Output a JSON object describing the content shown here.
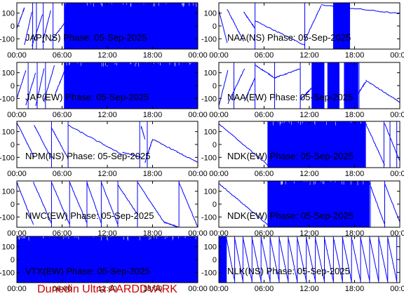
{
  "footer": {
    "text": "Dunedin Ultra AARDDVARK",
    "color": "#cc0000"
  },
  "colors": {
    "trace": "#0000ff",
    "frame": "#000000"
  },
  "chart_data": [
    {
      "type": "line",
      "title": "JAP(NS) Phase: 05-Sep-2025",
      "column": 0,
      "row": 0,
      "x_ticks": [
        "00:00",
        "06:00",
        "12:00",
        "18:00",
        "00:00"
      ],
      "y_ticks": [
        100,
        0,
        -100
      ],
      "ylim": [
        -180,
        180
      ],
      "xlim_hours": [
        0,
        24
      ],
      "segments": [
        {
          "x": [
            0,
            1.0
          ],
          "y": [
            -20,
            140
          ]
        },
        {
          "x": [
            1.0,
            2.0
          ],
          "y": [
            -150,
            110
          ]
        },
        {
          "x": [
            2.0,
            3.4
          ],
          "y": [
            -160,
            90
          ]
        },
        {
          "x": [
            3.4,
            4.5
          ],
          "y": [
            -130,
            120
          ]
        },
        {
          "x": [
            4.5,
            6.3
          ],
          "y": [
            -120,
            20
          ]
        }
      ],
      "noise_spans": [
        {
          "x": [
            6.3,
            24
          ],
          "ymin": -180,
          "ymax": 180
        }
      ],
      "vertical_lines": [
        2.1,
        2.6,
        3.5,
        4.8,
        6.3,
        16.1,
        16.9,
        18.0,
        23.7
      ]
    },
    {
      "type": "line",
      "title": "NAA(NS) Phase: 05-Sep-2025",
      "column": 1,
      "row": 0,
      "x_ticks": [
        "00:00",
        "06:00",
        "12:00",
        "18:00",
        "00:00"
      ],
      "y_ticks": [
        100,
        0,
        -100
      ],
      "ylim": [
        -180,
        180
      ],
      "xlim_hours": [
        0,
        24
      ],
      "segments": [
        {
          "x": [
            0,
            1.1
          ],
          "y": [
            120,
            -130
          ]
        },
        {
          "x": [
            1.1,
            3.3
          ],
          "y": [
            130,
            -120
          ]
        },
        {
          "x": [
            3.3,
            4.8
          ],
          "y": [
            110,
            -20
          ]
        },
        {
          "x": [
            4.8,
            11.4
          ],
          "y": [
            40,
            -150
          ]
        },
        {
          "x": [
            11.4,
            13.6
          ],
          "y": [
            -110,
            160
          ]
        },
        {
          "x": [
            13.6,
            24
          ],
          "y": [
            165,
            95
          ]
        }
      ],
      "noise_spans": [
        {
          "x": [
            15.2,
            17.4
          ],
          "ymin": -180,
          "ymax": 180
        }
      ],
      "vertical_lines": [
        4.8,
        11.4,
        15.2,
        16.8
      ]
    },
    {
      "type": "line",
      "title": "JAP(EW) Phase: 05-Sep-2025",
      "column": 0,
      "row": 1,
      "x_ticks": [
        "00:00",
        "06:00",
        "12:00",
        "18:00",
        "00:00"
      ],
      "y_ticks": [
        100,
        0,
        -100
      ],
      "ylim": [
        -180,
        180
      ],
      "xlim_hours": [
        0,
        24
      ],
      "segments": [
        {
          "x": [
            0,
            1.2
          ],
          "y": [
            -100,
            120
          ]
        },
        {
          "x": [
            1.2,
            2.5
          ],
          "y": [
            -150,
            100
          ]
        },
        {
          "x": [
            2.5,
            3.6
          ],
          "y": [
            -160,
            130
          ]
        },
        {
          "x": [
            3.6,
            5.0
          ],
          "y": [
            -120,
            160
          ]
        },
        {
          "x": [
            5.0,
            6.3
          ],
          "y": [
            -80,
            110
          ]
        }
      ],
      "noise_spans": [
        {
          "x": [
            6.3,
            24
          ],
          "ymin": -180,
          "ymax": 180
        }
      ],
      "vertical_lines": [
        1.5,
        2.7,
        3.8,
        6.3
      ]
    },
    {
      "type": "line",
      "title": "NAA(EW) Phase: 05-Sep-2025",
      "column": 1,
      "row": 1,
      "x_ticks": [
        "00:00",
        "06:00",
        "12:00",
        "18:00",
        "00:00"
      ],
      "y_ticks": [
        100,
        0,
        -100
      ],
      "ylim": [
        -180,
        180
      ],
      "xlim_hours": [
        0,
        24
      ],
      "segments": [
        {
          "x": [
            0,
            1.2
          ],
          "y": [
            -160,
            120
          ]
        },
        {
          "x": [
            1.2,
            3.4
          ],
          "y": [
            -140,
            130
          ]
        },
        {
          "x": [
            3.4,
            4.8
          ],
          "y": [
            -120,
            60
          ]
        },
        {
          "x": [
            4.8,
            7.4
          ],
          "y": [
            160,
            60
          ]
        },
        {
          "x": [
            7.4,
            10.8
          ],
          "y": [
            60,
            130
          ]
        },
        {
          "x": [
            10.8,
            12.3
          ],
          "y": [
            -110,
            -20
          ]
        },
        {
          "x": [
            18.5,
            19.5
          ],
          "y": [
            -60,
            30
          ]
        },
        {
          "x": [
            19.5,
            24
          ],
          "y": [
            40,
            -130
          ]
        }
      ],
      "noise_spans": [
        {
          "x": [
            12.3,
            14.0
          ],
          "ymin": -180,
          "ymax": 180
        },
        {
          "x": [
            14.4,
            16.0
          ],
          "ymin": -180,
          "ymax": 180
        },
        {
          "x": [
            16.6,
            18.5
          ],
          "ymin": -180,
          "ymax": 180
        }
      ],
      "vertical_lines": [
        2.0,
        4.8,
        7.4,
        10.8,
        13.5,
        18.6
      ]
    },
    {
      "type": "line",
      "title": "NPM(NS) Phase: 05-Sep-2025",
      "column": 0,
      "row": 2,
      "x_ticks": [
        "00:00",
        "06:00",
        "12:00",
        "18:00",
        "00:00"
      ],
      "y_ticks": [
        100,
        0,
        -100
      ],
      "ylim": [
        -180,
        180
      ],
      "xlim_hours": [
        0,
        24
      ],
      "segments": [
        {
          "x": [
            0,
            2.3
          ],
          "y": [
            170,
            -100
          ]
        },
        {
          "x": [
            2.3,
            4.6
          ],
          "y": [
            150,
            -110
          ]
        },
        {
          "x": [
            4.6,
            6.8
          ],
          "y": [
            130,
            -110
          ]
        },
        {
          "x": [
            6.8,
            14.0
          ],
          "y": [
            150,
            -80
          ]
        },
        {
          "x": [
            14.0,
            16.5
          ],
          "y": [
            -60,
            -100
          ]
        },
        {
          "x": [
            16.5,
            17.0
          ],
          "y": [
            140,
            40
          ]
        },
        {
          "x": [
            17.0,
            18.0
          ],
          "y": [
            -140,
            40
          ]
        },
        {
          "x": [
            18.0,
            24
          ],
          "y": [
            40,
            -140
          ]
        }
      ],
      "noise_spans": [],
      "vertical_lines": [
        4.6,
        6.8,
        16.3,
        17.3
      ]
    },
    {
      "type": "line",
      "title": "NDK(EW) Phase: 05-Sep-2025",
      "column": 1,
      "row": 2,
      "x_ticks": [
        "00:00",
        "06:00",
        "12:00",
        "18:00",
        "00:00"
      ],
      "y_ticks": [
        100,
        0,
        -100
      ],
      "ylim": [
        -180,
        180
      ],
      "xlim_hours": [
        0,
        24
      ],
      "segments": [
        {
          "x": [
            0,
            6.5
          ],
          "y": [
            160,
            -160
          ]
        },
        {
          "x": [
            19.5,
            22.0
          ],
          "y": [
            160,
            -160
          ]
        },
        {
          "x": [
            22.0,
            24
          ],
          "y": [
            160,
            -130
          ]
        }
      ],
      "noise_spans": [
        {
          "x": [
            6.5,
            19.5
          ],
          "ymin": -180,
          "ymax": 180
        }
      ],
      "vertical_lines": [
        6.5,
        21.9,
        22.7,
        23.6
      ]
    },
    {
      "type": "line",
      "title": "NWC(EW) Phase: 05-Sep-2025",
      "column": 0,
      "row": 3,
      "x_ticks": [
        "00:00",
        "06:00",
        "12:00",
        "18:00",
        "00:00"
      ],
      "y_ticks": [
        100,
        0,
        -100
      ],
      "ylim": [
        -180,
        180
      ],
      "xlim_hours": [
        0,
        24
      ],
      "segments": [
        {
          "x": [
            0,
            2.2
          ],
          "y": [
            170,
            -160
          ]
        },
        {
          "x": [
            2.2,
            4.6
          ],
          "y": [
            170,
            -150
          ]
        },
        {
          "x": [
            4.6,
            7.0
          ],
          "y": [
            170,
            -160
          ]
        },
        {
          "x": [
            7.0,
            9.3
          ],
          "y": [
            170,
            -150
          ]
        },
        {
          "x": [
            9.3,
            11.2
          ],
          "y": [
            170,
            -150
          ]
        },
        {
          "x": [
            11.2,
            13.4
          ],
          "y": [
            170,
            -160
          ]
        },
        {
          "x": [
            13.4,
            16.0
          ],
          "y": [
            150,
            -80
          ]
        },
        {
          "x": [
            16.0,
            19.5
          ],
          "y": [
            170,
            -140
          ]
        },
        {
          "x": [
            19.5,
            21.5
          ],
          "y": [
            -140,
            -180
          ]
        },
        {
          "x": [
            21.5,
            24
          ],
          "y": [
            170,
            -180
          ]
        }
      ],
      "noise_spans": [],
      "vertical_lines": [
        4.6,
        7.0,
        9.3,
        11.2,
        13.4,
        16.0,
        21.5
      ]
    },
    {
      "type": "line",
      "title": "NDK(EW) Phase: 05-Sep-2025",
      "column": 1,
      "row": 3,
      "x_ticks": [
        "00:00",
        "06:00",
        "12:00",
        "18:00",
        "00:00"
      ],
      "y_ticks": [
        100,
        0,
        -100
      ],
      "ylim": [
        -180,
        180
      ],
      "xlim_hours": [
        0,
        24
      ],
      "segments": [
        {
          "x": [
            0,
            6.5
          ],
          "y": [
            160,
            -160
          ]
        },
        {
          "x": [
            20.0,
            22.0
          ],
          "y": [
            160,
            -160
          ]
        },
        {
          "x": [
            22.0,
            24
          ],
          "y": [
            160,
            -140
          ]
        }
      ],
      "noise_spans": [
        {
          "x": [
            6.5,
            20.0
          ],
          "ymin": -180,
          "ymax": 180
        }
      ],
      "vertical_lines": [
        6.5,
        20.1,
        22.0
      ]
    },
    {
      "type": "line",
      "title": "VTX(EW) Phase: 05-Sep-2025",
      "column": 0,
      "row": 4,
      "x_ticks": [
        "00:00",
        "06:00",
        "12:00",
        "18:00",
        "00:00"
      ],
      "y_ticks": [
        100,
        0,
        -100
      ],
      "ylim": [
        -180,
        180
      ],
      "xlim_hours": [
        0,
        24
      ],
      "segments": [],
      "noise_spans": [
        {
          "x": [
            0,
            24
          ],
          "ymin": -180,
          "ymax": 180
        }
      ],
      "vertical_lines": []
    },
    {
      "type": "line",
      "title": "NLK(NS) Phase: 05-Sep-2025",
      "column": 1,
      "row": 4,
      "x_ticks": [
        "00:00",
        "06:00",
        "12:00",
        "18:00",
        "00:00"
      ],
      "y_ticks": [
        100,
        0,
        -100
      ],
      "ylim": [
        -180,
        180
      ],
      "xlim_hours": [
        0,
        24
      ],
      "segments": [
        {
          "x": [
            1.0,
            2.1
          ],
          "y": [
            170,
            -170
          ]
        },
        {
          "x": [
            2.1,
            3.2
          ],
          "y": [
            170,
            -170
          ]
        },
        {
          "x": [
            3.2,
            4.4
          ],
          "y": [
            170,
            -170
          ]
        },
        {
          "x": [
            4.4,
            5.6
          ],
          "y": [
            170,
            -170
          ]
        },
        {
          "x": [
            5.6,
            6.8
          ],
          "y": [
            170,
            -170
          ]
        },
        {
          "x": [
            6.8,
            8.0
          ],
          "y": [
            170,
            -170
          ]
        },
        {
          "x": [
            8.0,
            9.2
          ],
          "y": [
            170,
            -170
          ]
        },
        {
          "x": [
            9.2,
            10.4
          ],
          "y": [
            170,
            -170
          ]
        },
        {
          "x": [
            10.4,
            11.6
          ],
          "y": [
            170,
            -170
          ]
        },
        {
          "x": [
            11.6,
            12.8
          ],
          "y": [
            170,
            -170
          ]
        },
        {
          "x": [
            12.8,
            14.0
          ],
          "y": [
            170,
            -170
          ]
        },
        {
          "x": [
            14.0,
            15.2
          ],
          "y": [
            170,
            -170
          ]
        },
        {
          "x": [
            15.2,
            16.4
          ],
          "y": [
            170,
            -170
          ]
        },
        {
          "x": [
            16.4,
            17.6
          ],
          "y": [
            170,
            -170
          ]
        },
        {
          "x": [
            17.6,
            18.8
          ],
          "y": [
            170,
            -170
          ]
        },
        {
          "x": [
            18.8,
            20.0
          ],
          "y": [
            170,
            -170
          ]
        },
        {
          "x": [
            20.0,
            21.2
          ],
          "y": [
            170,
            -170
          ]
        },
        {
          "x": [
            21.2,
            22.4
          ],
          "y": [
            170,
            -170
          ]
        },
        {
          "x": [
            22.4,
            23.6
          ],
          "y": [
            170,
            -170
          ]
        }
      ],
      "noise_spans": [
        {
          "x": [
            0,
            1.0
          ],
          "ymin": -180,
          "ymax": 180
        }
      ],
      "vertical_lines": [
        1.0,
        2.1,
        3.2,
        4.4,
        5.6,
        6.8,
        8.0,
        9.2,
        10.4,
        11.6,
        12.8,
        14.0,
        15.2,
        16.4,
        17.6,
        18.8,
        20.0,
        21.2,
        22.4,
        23.6
      ]
    }
  ]
}
